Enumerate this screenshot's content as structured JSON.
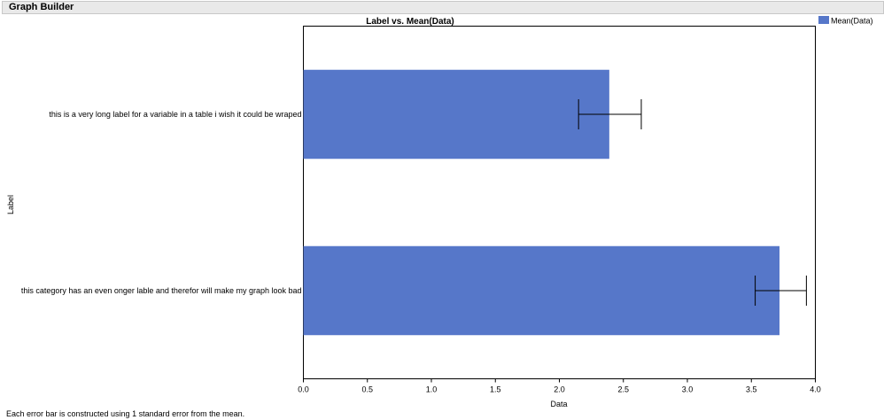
{
  "window": {
    "title": "Graph Builder"
  },
  "footnote": "Each error bar is constructed using 1 standard error from the mean.",
  "chart_data": {
    "type": "bar",
    "orientation": "horizontal",
    "title": "Label vs. Mean(Data)",
    "xlabel": "Data",
    "ylabel": "Label",
    "xlim": [
      0,
      4.0
    ],
    "xticks": [
      "0.0",
      "0.5",
      "1.0",
      "1.5",
      "2.0",
      "2.5",
      "3.0",
      "3.5",
      "4.0"
    ],
    "categories": [
      "this is a very long label for a variable in a table i wish it could be wraped",
      "this category has an even onger lable and therefor will make my graph look bad"
    ],
    "series": [
      {
        "name": "Mean(Data)",
        "values": [
          2.39,
          3.72
        ],
        "error_low": [
          2.15,
          3.53
        ],
        "error_high": [
          2.64,
          3.93
        ]
      }
    ],
    "bar_color": "#5677c9",
    "legend_position": "top-right",
    "grid": false
  }
}
